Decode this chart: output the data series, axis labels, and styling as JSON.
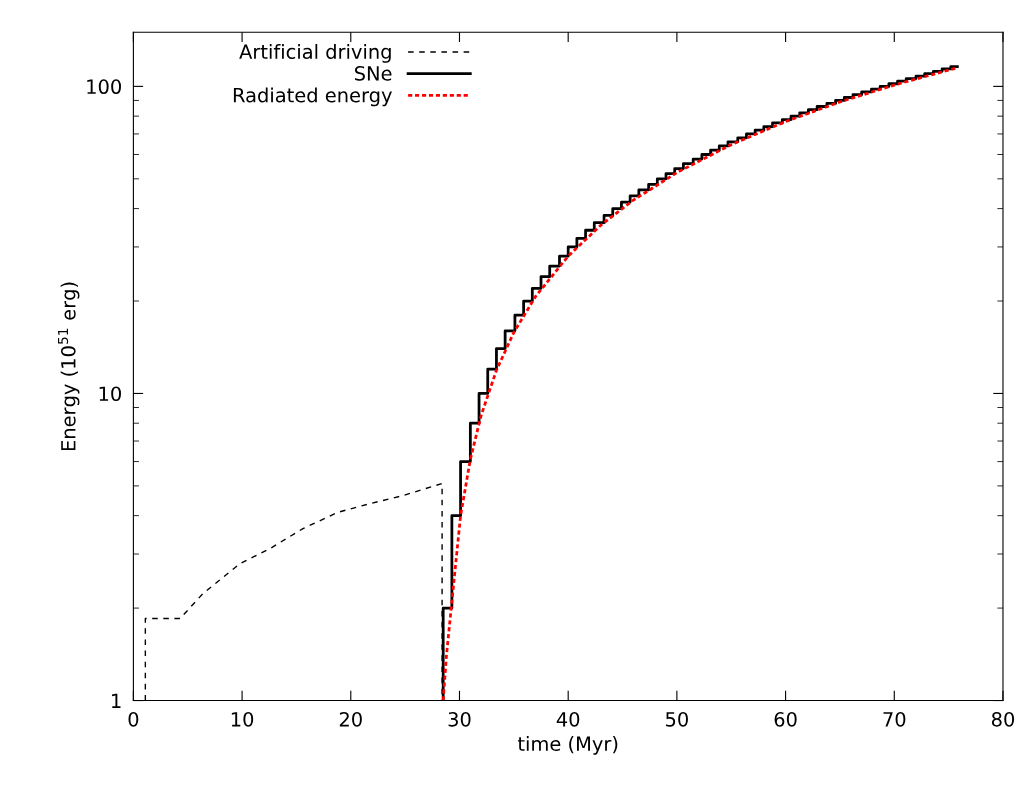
{
  "chart_data": {
    "type": "line",
    "xlabel": "time (Myr)",
    "ylabel": "Energy (10$^{51}$ erg)",
    "xlim": [
      0,
      80
    ],
    "xticks": [
      0,
      10,
      20,
      30,
      40,
      50,
      60,
      70,
      80
    ],
    "ylim": [
      1,
      150
    ],
    "yticks": [
      1,
      10,
      100
    ],
    "log": "y",
    "grid": false,
    "legend": "top left",
    "series": [
      {
        "name": "Artificial driving",
        "color": "#000000",
        "line_style": "dashed",
        "x": [
          1.1,
          1.1,
          4.3,
          6.4,
          9.8,
          12.6,
          15.6,
          18.8,
          21.8,
          24.8,
          28.4,
          28.4
        ],
        "values": [
          1,
          1.85,
          1.85,
          2.23,
          2.79,
          3.13,
          3.63,
          4.1,
          4.38,
          4.65,
          5.09,
          1
        ]
      },
      {
        "name": "SNe",
        "color": "#000000",
        "line_style": "solid",
        "type": "step",
        "x": [
          28.5,
          28.5,
          29.3,
          30.1,
          31.0,
          31.8,
          32.6,
          33.4,
          34.2,
          35.1,
          35.9,
          36.7,
          37.5,
          38.3,
          39.2,
          40.0,
          40.8,
          41.6,
          42.4,
          43.3,
          44.1,
          44.9,
          45.7,
          46.5,
          47.4,
          48.2,
          49.0,
          49.8,
          50.6,
          51.5,
          52.3,
          53.1,
          53.9,
          54.7,
          55.6,
          56.4,
          57.2,
          58.0,
          58.8,
          59.7,
          60.5,
          61.3,
          62.1,
          62.9,
          63.8,
          64.6,
          65.4,
          66.2,
          67.0,
          67.9,
          68.7,
          69.5,
          70.3,
          71.1,
          72.0,
          72.8,
          73.6,
          74.4,
          75.2,
          75.8
        ],
        "values": [
          1,
          2,
          4,
          6,
          8,
          10,
          12,
          14,
          16,
          18,
          20,
          22,
          24,
          26,
          28,
          30,
          32,
          34,
          36,
          38,
          40,
          42,
          44,
          46,
          48,
          50,
          52,
          54,
          56,
          58,
          60,
          62,
          64,
          66,
          68,
          70,
          72,
          74,
          76,
          78,
          80,
          82,
          84,
          86,
          88,
          90,
          92,
          94,
          96,
          98,
          100,
          102,
          104,
          106,
          108,
          110,
          112,
          114,
          116,
          116
        ]
      },
      {
        "name": "Radiated energy",
        "color": "#ff0000",
        "line_style": "dotted",
        "x": [
          28.5,
          28.8,
          29.3,
          30.1,
          31.0,
          32.0,
          33.4,
          35.0,
          37.0,
          40.0,
          43.0,
          46.0,
          50.0,
          55.0,
          60.0,
          65.0,
          70.0,
          75.8
        ],
        "values": [
          1,
          1.4,
          2.1,
          4,
          6.1,
          8.5,
          11.9,
          15.8,
          20.7,
          28,
          35.3,
          42.6,
          52.4,
          64.6,
          76.8,
          89,
          101,
          115
        ]
      }
    ]
  }
}
